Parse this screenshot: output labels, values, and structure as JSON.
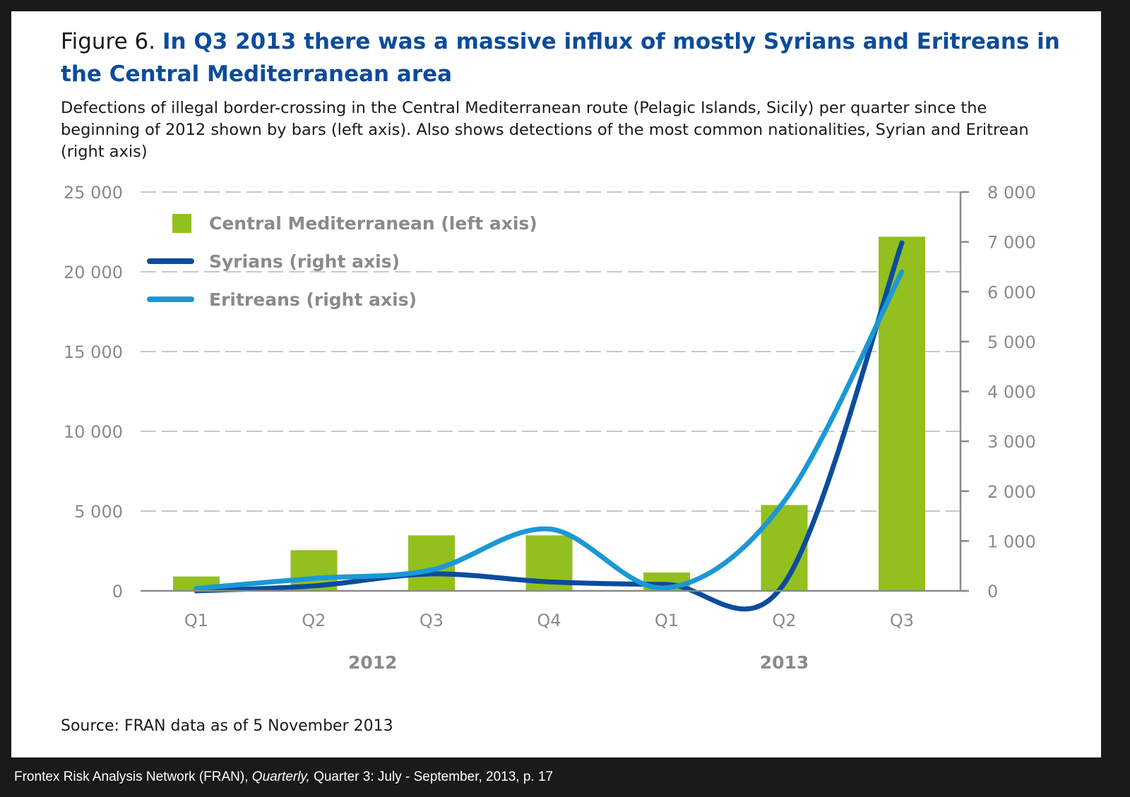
{
  "figure": {
    "label": "Figure 6.",
    "title": "In Q3 2013 there was a massive influx of mostly Syrians and Eritreans in the Central Mediterranean area",
    "subtitle": "Defections of illegal border-crossing in the Central Mediterranean route (Pelagic Islands, Sicily) per quarter since the beginning of 2012 shown by bars (left axis). Also shows detections of the most common nationalities, Syrian and Eritrean (right axis)",
    "source": "Source: FRAN data as of 5 November 2013"
  },
  "citation": {
    "prefix": "Frontex Risk Analysis Network (FRAN), ",
    "italic": "Quarterly,",
    "suffix": " Quarter 3: July - September, 2013, p. 17"
  },
  "chart_data": {
    "type": "bar",
    "categories": [
      "Q1",
      "Q2",
      "Q3",
      "Q4",
      "Q1",
      "Q2",
      "Q3"
    ],
    "year_labels": [
      {
        "label": "2012",
        "categories": [
          "Q1",
          "Q2",
          "Q3",
          "Q4"
        ]
      },
      {
        "label": "2013",
        "categories": [
          "Q1",
          "Q2",
          "Q3"
        ]
      }
    ],
    "left_axis": {
      "ylim": [
        0,
        25000
      ],
      "ticks": [
        0,
        5000,
        10000,
        15000,
        20000,
        25000
      ],
      "tick_labels": [
        "0",
        "5 000",
        "10 000",
        "15 000",
        "20 000",
        "25 000"
      ]
    },
    "right_axis": {
      "ylim": [
        0,
        8000
      ],
      "ticks": [
        0,
        1000,
        2000,
        3000,
        4000,
        5000,
        6000,
        7000,
        8000
      ],
      "tick_labels": [
        "0",
        "1 000",
        "2 000",
        "3 000",
        "4 000",
        "5 000",
        "6 000",
        "7 000",
        "8 000"
      ]
    },
    "grid": "horizontal dashed",
    "legend_position": "top-left",
    "series": [
      {
        "name": "Central Mediterranean (left axis)",
        "kind": "bar",
        "axis": "left",
        "color": "#93c01f",
        "values": [
          900,
          2550,
          3480,
          3480,
          1150,
          5380,
          22200
        ]
      },
      {
        "name": "Syrians (right axis)",
        "kind": "line",
        "axis": "right",
        "color": "#0b4c9c",
        "values": [
          0,
          100,
          340,
          180,
          130,
          150,
          6980
        ]
      },
      {
        "name": "Eritreans (right axis)",
        "kind": "line",
        "axis": "right",
        "color": "#1b98d5",
        "values": [
          50,
          250,
          420,
          1240,
          60,
          1800,
          6400
        ]
      }
    ]
  }
}
